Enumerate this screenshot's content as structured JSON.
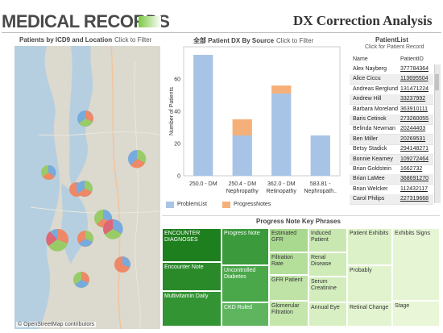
{
  "header": {
    "logo_text": "MEDICAL RECORDS",
    "title": "DX Correction Analysis"
  },
  "map": {
    "title": "Patients by ICD9 and Location",
    "hint": "Click to Filter",
    "credit": "© OpenStreetMap contributors",
    "pie_colors": [
      "#ee8866",
      "#77aadd",
      "#99cc66",
      "#5599cc",
      "#dd6677"
    ]
  },
  "bar_panel": {
    "title": "全部 Patient DX By Source",
    "hint": "Click to Filter"
  },
  "chart_data": {
    "type": "bar",
    "stacked": true,
    "categories": [
      "250.0 - DM",
      "250.4 - DM\nNephropathy",
      "362.0 - DM\nRetinopathy",
      "583.81 -\nNephropath.."
    ],
    "series": [
      {
        "name": "ProblemList",
        "color": "#a7c4e6",
        "values": [
          75,
          25,
          51,
          25
        ]
      },
      {
        "name": "ProgressNotes",
        "color": "#f5b07a",
        "values": [
          0,
          10,
          5,
          0
        ]
      }
    ],
    "ylabel": "Number of Patients",
    "xlabel": "",
    "yticks": [
      0,
      20,
      40,
      60
    ],
    "ylim": [
      0,
      80
    ],
    "grid": false,
    "legend": "bottom-left"
  },
  "patient_list": {
    "title": "PatientList",
    "hint": "Click for Patient Record",
    "col_name": "Name",
    "col_id": "PatientID",
    "rows": [
      {
        "name": "Alex Nayberg",
        "id": "377784364"
      },
      {
        "name": "Alice Ciccu",
        "id": "113695504"
      },
      {
        "name": "Andreas Berglund",
        "id": "131471224"
      },
      {
        "name": "Andrew Hill",
        "id": "33237992"
      },
      {
        "name": "Barbara Moreland",
        "id": "363910111"
      },
      {
        "name": "Baris Cetinok",
        "id": "273260055"
      },
      {
        "name": "Belinda Newman",
        "id": "20244403"
      },
      {
        "name": "Ben Miller",
        "id": "20269531"
      },
      {
        "name": "Betsy Stadick",
        "id": "294148271"
      },
      {
        "name": "Bonnie Kearney",
        "id": "109272464"
      },
      {
        "name": "Brian Goldstein",
        "id": "1662732"
      },
      {
        "name": "Brian LaMee",
        "id": "368691270"
      },
      {
        "name": "Brian Welcker",
        "id": "112432117"
      },
      {
        "name": "Carol Philips",
        "id": "227319668"
      }
    ]
  },
  "treemap": {
    "title": "Progress Note Key Phrases",
    "cells": [
      {
        "label": "ENCOUNTER DIAGNOSES",
        "color": "#1e7f1e"
      },
      {
        "label": "Encounter Note",
        "color": "#2a8a2a"
      },
      {
        "label": "Multivitamin Daily",
        "color": "#339433"
      },
      {
        "label": "Progress Note",
        "color": "#3b9a3b"
      },
      {
        "label": "Uncontrolled Diabetes",
        "color": "#4aa84a"
      },
      {
        "label": "CKD Ruled",
        "color": "#5eb55e"
      },
      {
        "label": "Estimated GFR",
        "color": "#a9d98f"
      },
      {
        "label": "Filtration Rate",
        "color": "#b4df9b"
      },
      {
        "label": "GFR Patient",
        "color": "#bfe3a6"
      },
      {
        "label": "Glomerular Filtration",
        "color": "#c4e6ab"
      },
      {
        "label": "Induced Patient",
        "color": "#c9e8b1"
      },
      {
        "label": "Renal Disease",
        "color": "#cfebb8"
      },
      {
        "label": "Serum Creatinine",
        "color": "#d3edbd"
      },
      {
        "label": "Annual Eye",
        "color": "#d7efc2"
      },
      {
        "label": "Patient Exhibits",
        "color": "#dcf1c8"
      },
      {
        "label": "Probably",
        "color": "#e0f3cc"
      },
      {
        "label": "Retinal Change",
        "color": "#e3f4d0"
      },
      {
        "label": "Exhibits Signs",
        "color": "#e6f5d4"
      },
      {
        "label": "Stage",
        "color": "#e9f6d7"
      }
    ]
  }
}
